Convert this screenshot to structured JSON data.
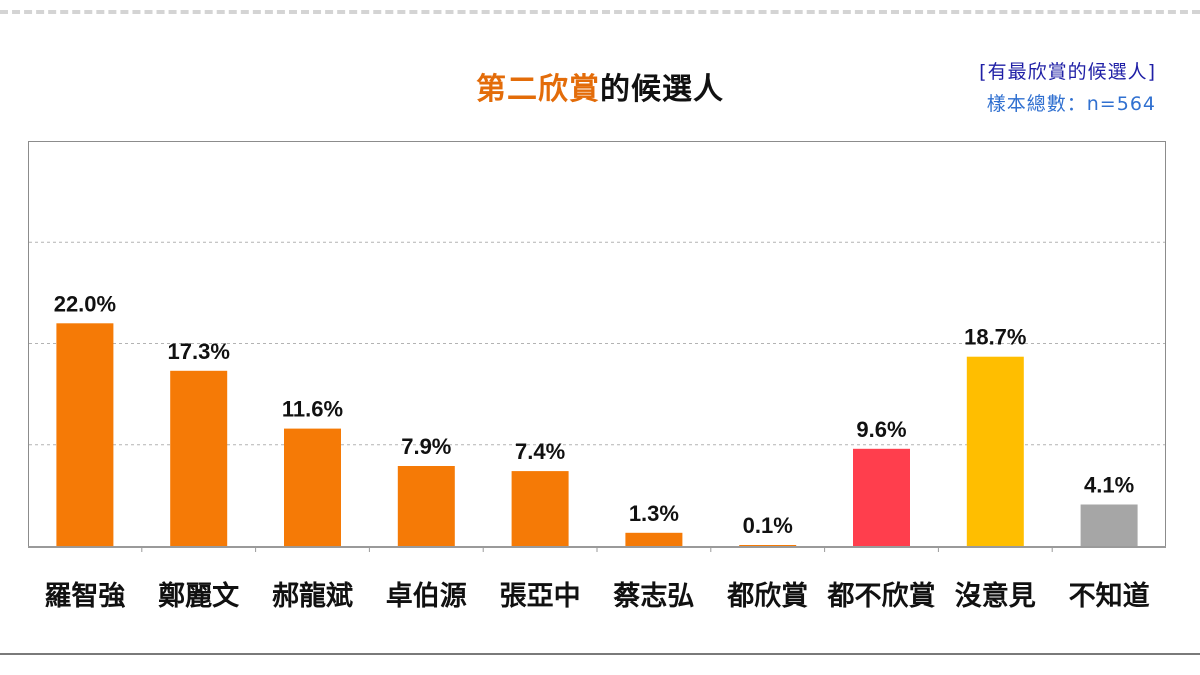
{
  "title": {
    "accent": "第二欣賞",
    "rest": "的候選人"
  },
  "note": {
    "line1": "[有最欣賞的候選人]",
    "line2": "樣本總數：n=564"
  },
  "colors": {
    "orange": "#f57a06",
    "red": "#ff3e4d",
    "yellow": "#ffbe00",
    "gray": "#a6a6a6",
    "grid": "#b3b3b3"
  },
  "chart_data": {
    "type": "bar",
    "title": "第二欣賞的候選人",
    "categories": [
      "羅智強",
      "鄭麗文",
      "郝龍斌",
      "卓伯源",
      "張亞中",
      "蔡志弘",
      "都欣賞",
      "都不欣賞",
      "沒意見",
      "不知道"
    ],
    "values": [
      22.0,
      17.3,
      11.6,
      7.9,
      7.4,
      1.3,
      0.1,
      9.6,
      18.7,
      4.1
    ],
    "labels": [
      "22.0%",
      "17.3%",
      "11.6%",
      "7.9%",
      "7.4%",
      "1.3%",
      "0.1%",
      "9.6%",
      "18.7%",
      "4.1%"
    ],
    "colors": [
      "#f57a06",
      "#f57a06",
      "#f57a06",
      "#f57a06",
      "#f57a06",
      "#f57a06",
      "#f57a06",
      "#ff3e4d",
      "#ffbe00",
      "#a6a6a6"
    ],
    "ylim": [
      0,
      40
    ],
    "gridlines": [
      10,
      20,
      30
    ],
    "xlabel": "",
    "ylabel": ""
  }
}
